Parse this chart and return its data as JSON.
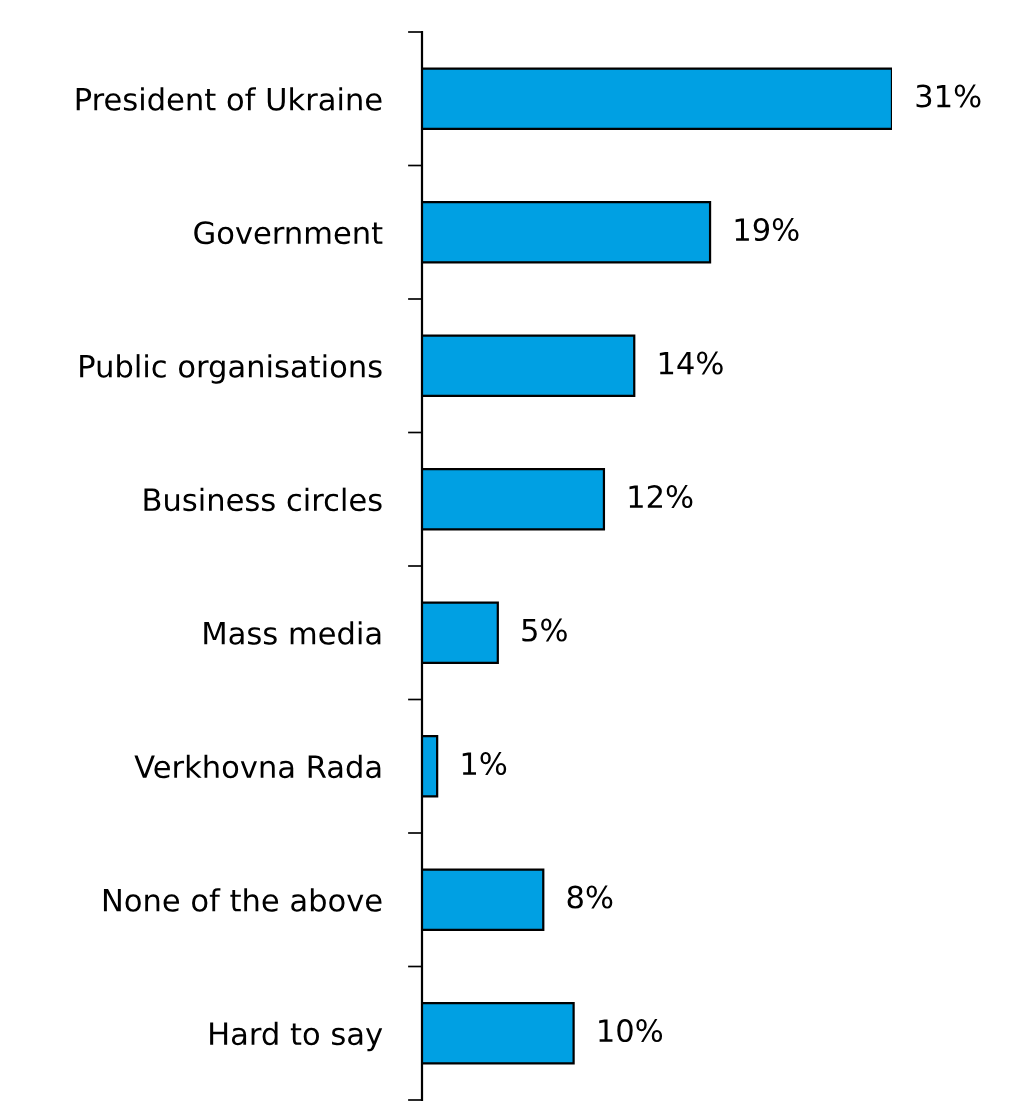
{
  "chart_data": {
    "type": "bar",
    "orientation": "horizontal",
    "categories": [
      "President of Ukraine",
      "Government",
      "Public organisations",
      "Business circles",
      "Mass media",
      "Verkhovna Rada",
      "None of the above",
      "Hard to say"
    ],
    "values": [
      31,
      19,
      14,
      12,
      5,
      1,
      8,
      10
    ],
    "value_labels": [
      "31%",
      "19%",
      "14%",
      "12%",
      "5%",
      "1%",
      "8%",
      "10%"
    ],
    "color": "#00a0e3",
    "grid": false,
    "legend": false
  }
}
